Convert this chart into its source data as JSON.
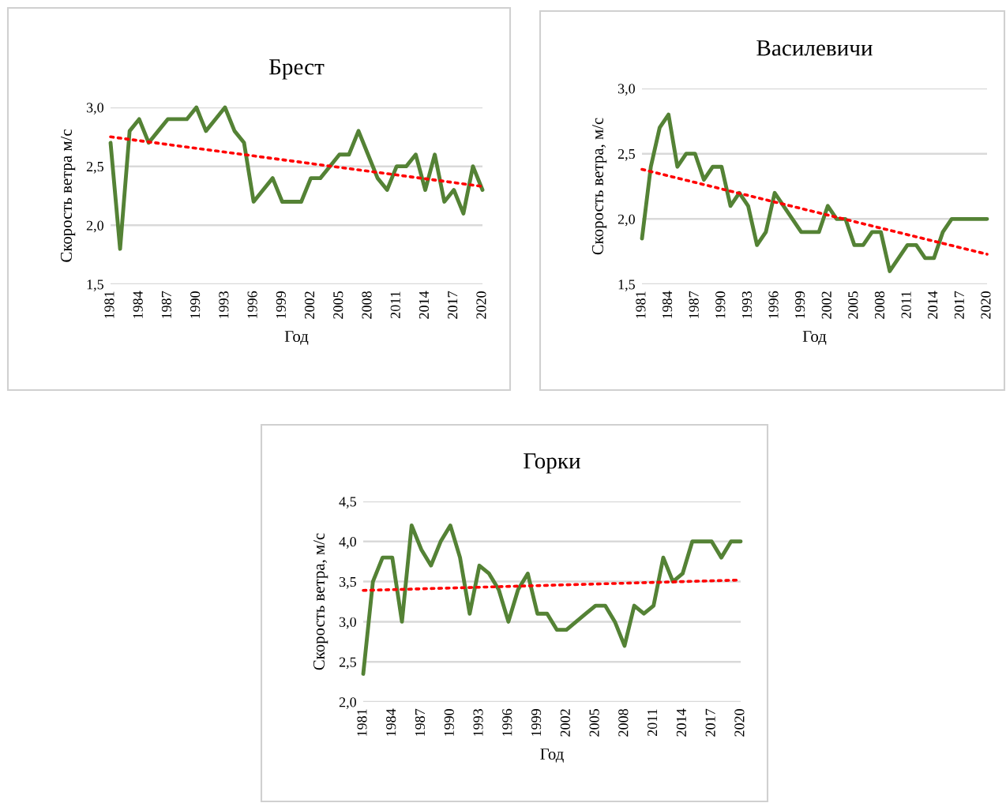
{
  "chart_data": [
    {
      "type": "line",
      "title": "Брест",
      "xlabel": "Год",
      "ylabel": "Скорость ветра м/с",
      "grid": "y",
      "x": [
        1981,
        1982,
        1983,
        1984,
        1985,
        1986,
        1987,
        1988,
        1989,
        1990,
        1991,
        1992,
        1993,
        1994,
        1995,
        1996,
        1997,
        1998,
        1999,
        2000,
        2001,
        2002,
        2003,
        2004,
        2005,
        2006,
        2007,
        2008,
        2009,
        2010,
        2011,
        2012,
        2013,
        2014,
        2015,
        2016,
        2017,
        2018,
        2019,
        2020
      ],
      "xlim": [
        1981,
        2020
      ],
      "xticks": [
        1981,
        1984,
        1987,
        1990,
        1993,
        1996,
        1999,
        2002,
        2005,
        2008,
        2011,
        2014,
        2017,
        2020
      ],
      "ylim": [
        1.5,
        3.0
      ],
      "yticks": [
        {
          "value": 1.5,
          "label": "1,5"
        },
        {
          "value": 2.0,
          "label": "2,0"
        },
        {
          "value": 2.5,
          "label": "2,5"
        },
        {
          "value": 3.0,
          "label": "3,0"
        }
      ],
      "series": [
        {
          "color": "#548235",
          "line_style": "solid",
          "values": [
            2.7,
            1.8,
            2.8,
            2.9,
            2.7,
            2.8,
            2.9,
            2.9,
            2.9,
            3.0,
            2.8,
            2.9,
            3.0,
            2.8,
            2.7,
            2.2,
            2.3,
            2.4,
            2.2,
            2.2,
            2.2,
            2.4,
            2.4,
            2.5,
            2.6,
            2.6,
            2.8,
            2.6,
            2.4,
            2.3,
            2.5,
            2.5,
            2.6,
            2.3,
            2.6,
            2.2,
            2.3,
            2.1,
            2.5,
            2.3
          ]
        },
        {
          "color": "#ff0000",
          "line_style": "dotted",
          "values": [
            2.75,
            null,
            null,
            null,
            null,
            null,
            null,
            null,
            null,
            null,
            null,
            null,
            null,
            null,
            null,
            null,
            null,
            null,
            null,
            null,
            null,
            null,
            null,
            null,
            null,
            null,
            null,
            null,
            null,
            null,
            null,
            null,
            null,
            null,
            null,
            null,
            null,
            null,
            null,
            2.33
          ]
        }
      ]
    },
    {
      "type": "line",
      "title": "Василевичи",
      "xlabel": "Год",
      "ylabel": "Скорость ветра, м/с",
      "grid": "y",
      "x": [
        1981,
        1982,
        1983,
        1984,
        1985,
        1986,
        1987,
        1988,
        1989,
        1990,
        1991,
        1992,
        1993,
        1994,
        1995,
        1996,
        1997,
        1998,
        1999,
        2000,
        2001,
        2002,
        2003,
        2004,
        2005,
        2006,
        2007,
        2008,
        2009,
        2010,
        2011,
        2012,
        2013,
        2014,
        2015,
        2016,
        2017,
        2018,
        2019,
        2020
      ],
      "xlim": [
        1981,
        2020
      ],
      "xticks": [
        1981,
        1984,
        1987,
        1990,
        1993,
        1996,
        1999,
        2002,
        2005,
        2008,
        2011,
        2014,
        2017,
        2020
      ],
      "ylim": [
        1.5,
        3.0
      ],
      "yticks": [
        {
          "value": 1.5,
          "label": "1,5"
        },
        {
          "value": 2.0,
          "label": "2,0"
        },
        {
          "value": 2.5,
          "label": "2,5"
        },
        {
          "value": 3.0,
          "label": "3,0"
        }
      ],
      "series": [
        {
          "color": "#548235",
          "line_style": "solid",
          "values": [
            1.85,
            2.4,
            2.7,
            2.8,
            2.4,
            2.5,
            2.5,
            2.3,
            2.4,
            2.4,
            2.1,
            2.2,
            2.1,
            1.8,
            1.9,
            2.2,
            2.1,
            2.0,
            1.9,
            1.9,
            1.9,
            2.1,
            2.0,
            2.0,
            1.8,
            1.8,
            1.9,
            1.9,
            1.6,
            1.7,
            1.8,
            1.8,
            1.7,
            1.7,
            1.9,
            2.0,
            2.0,
            2.0,
            2.0,
            2.0
          ]
        },
        {
          "color": "#ff0000",
          "line_style": "dotted",
          "values": [
            2.38,
            null,
            null,
            null,
            null,
            null,
            null,
            null,
            null,
            null,
            null,
            null,
            null,
            null,
            null,
            null,
            null,
            null,
            null,
            null,
            null,
            null,
            null,
            null,
            null,
            null,
            null,
            null,
            null,
            null,
            null,
            null,
            null,
            null,
            null,
            null,
            null,
            null,
            null,
            1.73
          ]
        }
      ]
    },
    {
      "type": "line",
      "title": "Горки",
      "xlabel": "Год",
      "ylabel": "Скорость ветра, м/с",
      "grid": "y",
      "x": [
        1981,
        1982,
        1983,
        1984,
        1985,
        1986,
        1987,
        1988,
        1989,
        1990,
        1991,
        1992,
        1993,
        1994,
        1995,
        1996,
        1997,
        1998,
        1999,
        2000,
        2001,
        2002,
        2003,
        2004,
        2005,
        2006,
        2007,
        2008,
        2009,
        2010,
        2011,
        2012,
        2013,
        2014,
        2015,
        2016,
        2017,
        2018,
        2019,
        2020
      ],
      "xlim": [
        1981,
        2020
      ],
      "xticks": [
        1981,
        1984,
        1987,
        1990,
        1993,
        1996,
        1999,
        2002,
        2005,
        2008,
        2011,
        2014,
        2017,
        2020
      ],
      "ylim": [
        2.0,
        4.5
      ],
      "yticks": [
        {
          "value": 2.0,
          "label": "2,0"
        },
        {
          "value": 2.5,
          "label": "2,5"
        },
        {
          "value": 3.0,
          "label": "3,0"
        },
        {
          "value": 3.5,
          "label": "3,5"
        },
        {
          "value": 4.0,
          "label": "4,0"
        },
        {
          "value": 4.5,
          "label": "4,5"
        }
      ],
      "series": [
        {
          "color": "#548235",
          "line_style": "solid",
          "values": [
            2.35,
            3.5,
            3.8,
            3.8,
            3.0,
            4.2,
            3.9,
            3.7,
            4.0,
            4.2,
            3.8,
            3.1,
            3.7,
            3.6,
            3.4,
            3.0,
            3.4,
            3.6,
            3.1,
            3.1,
            2.9,
            2.9,
            3.0,
            3.1,
            3.2,
            3.2,
            3.0,
            2.7,
            3.2,
            3.1,
            3.2,
            3.8,
            3.5,
            3.6,
            4.0,
            4.0,
            4.0,
            3.8,
            4.0,
            4.0
          ]
        },
        {
          "color": "#ff0000",
          "line_style": "dotted",
          "values": [
            3.39,
            null,
            null,
            null,
            null,
            null,
            null,
            null,
            null,
            null,
            null,
            null,
            null,
            null,
            null,
            null,
            null,
            null,
            null,
            null,
            null,
            null,
            null,
            null,
            null,
            null,
            null,
            null,
            null,
            null,
            null,
            null,
            null,
            null,
            null,
            null,
            null,
            null,
            null,
            3.52
          ]
        }
      ]
    }
  ]
}
